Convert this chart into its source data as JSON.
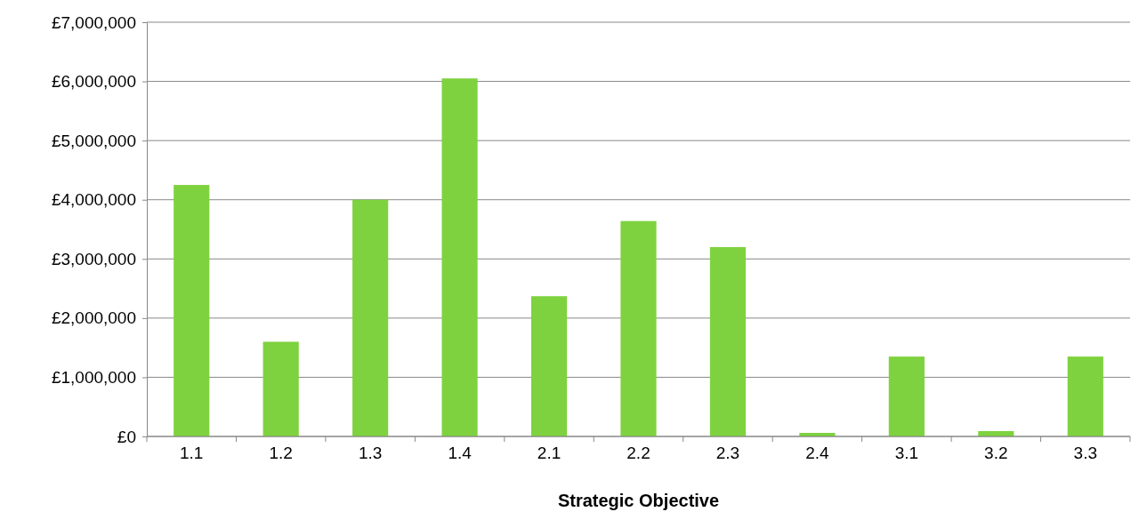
{
  "chart_data": {
    "type": "bar",
    "xlabel": "Strategic Objective",
    "categories": [
      "1.1",
      "1.2",
      "1.3",
      "1.4",
      "2.1",
      "2.2",
      "2.3",
      "2.4",
      "3.1",
      "3.2",
      "3.3"
    ],
    "values": [
      4250000,
      1600000,
      4000000,
      6050000,
      2370000,
      3640000,
      3200000,
      60000,
      1350000,
      90000,
      1350000
    ],
    "color": "#7ed23f",
    "ylim": [
      0,
      7000000
    ],
    "yticks": [
      {
        "value": 0,
        "label": "£0"
      },
      {
        "value": 1000000,
        "label": "£1,000,000"
      },
      {
        "value": 2000000,
        "label": "£2,000,000"
      },
      {
        "value": 3000000,
        "label": "£3,000,000"
      },
      {
        "value": 4000000,
        "label": "£4,000,000"
      },
      {
        "value": 5000000,
        "label": "£5,000,000"
      },
      {
        "value": 6000000,
        "label": "£6,000,000"
      },
      {
        "value": 7000000,
        "label": "£7,000,000"
      }
    ],
    "grid": "y"
  }
}
